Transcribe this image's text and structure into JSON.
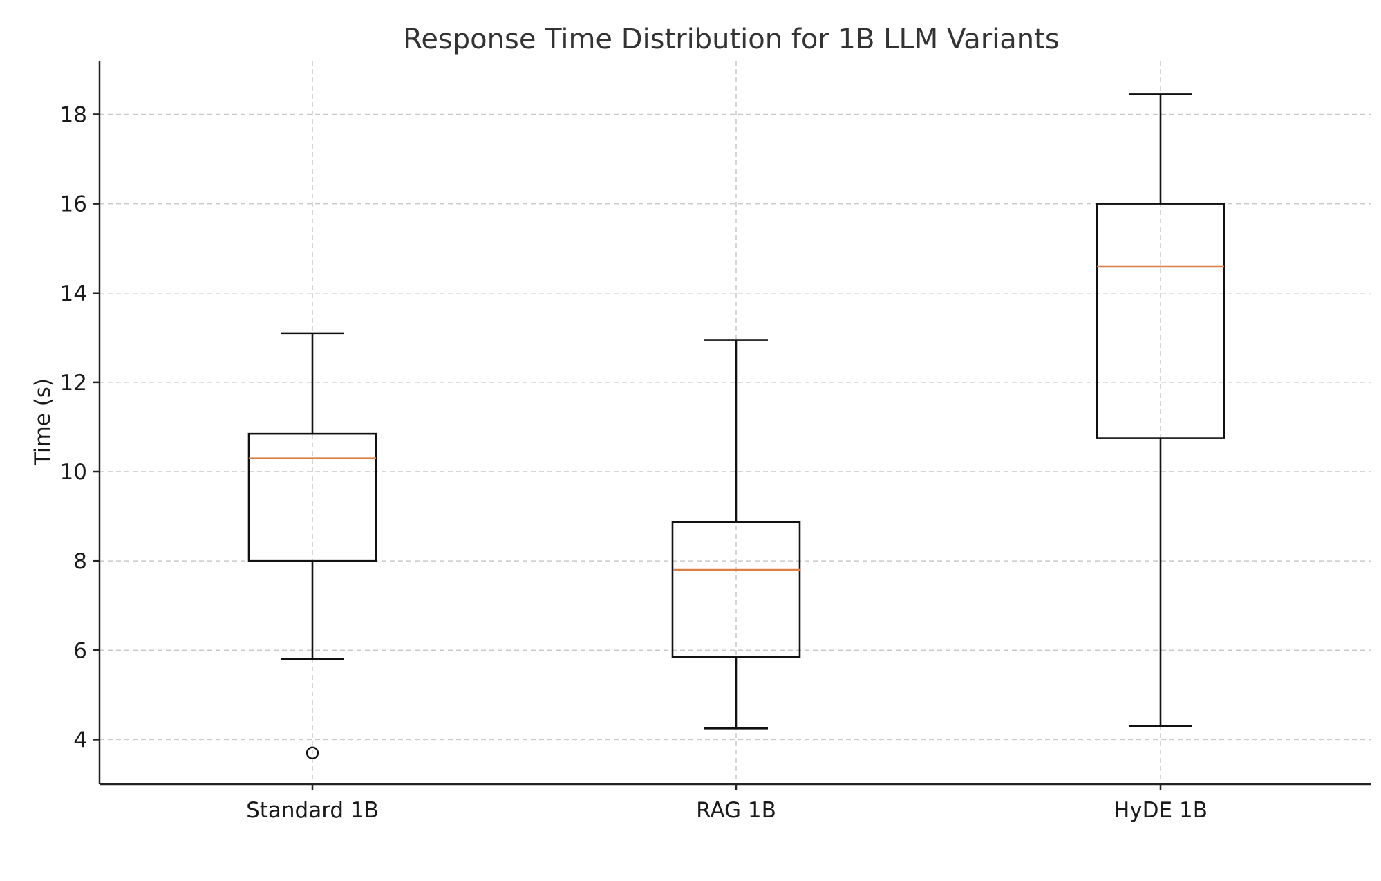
{
  "chart_data": {
    "type": "box",
    "title": "Response Time Distribution for 1B LLM Variants",
    "xlabel": "",
    "ylabel": "Time (s)",
    "ylim": [
      3,
      19.2
    ],
    "yticks": [
      4,
      6,
      8,
      10,
      12,
      14,
      16,
      18
    ],
    "grid": true,
    "median_color": "#dd7f45",
    "box_color": "#111111",
    "categories": [
      "Standard 1B",
      "RAG 1B",
      "HyDE 1B"
    ],
    "boxes": [
      {
        "label": "Standard 1B",
        "whisker_low": 5.8,
        "q1": 8.0,
        "median": 10.3,
        "q3": 10.85,
        "whisker_high": 13.1,
        "outliers": [
          3.7
        ]
      },
      {
        "label": "RAG 1B",
        "whisker_low": 4.25,
        "q1": 5.85,
        "median": 7.8,
        "q3": 8.87,
        "whisker_high": 12.95,
        "outliers": []
      },
      {
        "label": "HyDE 1B",
        "whisker_low": 4.3,
        "q1": 10.75,
        "median": 14.6,
        "q3": 16.0,
        "whisker_high": 18.45,
        "outliers": []
      }
    ]
  }
}
